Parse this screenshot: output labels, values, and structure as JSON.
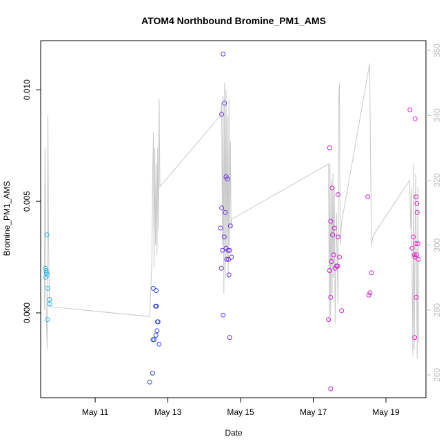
{
  "chart_data": {
    "type": "scatter",
    "title": "ATOM4 Northbound Bromine_PM1_AMS",
    "xlabel": "Date",
    "ylabel": "Bromine_PM1_AMS",
    "x_ticks": [
      "May 11",
      "May 13",
      "May 15",
      "May 17",
      "May 19"
    ],
    "x_tick_days": [
      11,
      13,
      15,
      17,
      19
    ],
    "xlim_days": [
      9.5,
      20.1
    ],
    "ylim": [
      -0.0038,
      0.0122
    ],
    "y_ticks": [
      0.0,
      0.005,
      0.01
    ],
    "y_tick_labels": [
      "0.000",
      "0.005",
      "0.010"
    ],
    "y2_ticks": [
      260,
      280,
      300,
      320,
      340,
      360
    ],
    "y2lim": [
      253,
      363
    ],
    "grid": false,
    "point_color_gradient": [
      "#29b6e8",
      "#1e4ee0",
      "#6a2ee0",
      "#c81ed4",
      "#e81ec8"
    ],
    "line_color": "#c8c8c8",
    "points": [
      [
        9.67,
        0.0035
      ],
      [
        9.63,
        0.002
      ],
      [
        9.65,
        0.0019
      ],
      [
        9.66,
        0.0018
      ],
      [
        9.64,
        0.0016
      ],
      [
        9.68,
        0.0017
      ],
      [
        9.7,
        0.0011
      ],
      [
        9.74,
        0.0006
      ],
      [
        9.75,
        0.0004
      ],
      [
        9.69,
        -0.0003
      ],
      [
        12.5,
        -0.0031
      ],
      [
        12.58,
        -0.0027
      ],
      [
        12.6,
        0.0011
      ],
      [
        12.68,
        0.001
      ],
      [
        12.66,
        0.0003
      ],
      [
        12.69,
        0.0003
      ],
      [
        12.71,
        -0.0004
      ],
      [
        12.73,
        -0.0004
      ],
      [
        12.7,
        -0.0008
      ],
      [
        12.62,
        -0.0012
      ],
      [
        12.59,
        -0.0012
      ],
      [
        12.67,
        -0.001
      ],
      [
        12.76,
        -0.0014
      ],
      [
        14.52,
        0.0116
      ],
      [
        14.56,
        0.0094
      ],
      [
        14.48,
        0.0089
      ],
      [
        14.6,
        0.0061
      ],
      [
        14.64,
        0.006
      ],
      [
        14.48,
        0.0047
      ],
      [
        14.58,
        0.0045
      ],
      [
        14.45,
        0.0038
      ],
      [
        14.72,
        0.0039
      ],
      [
        14.55,
        0.0034
      ],
      [
        14.6,
        0.0029
      ],
      [
        14.66,
        0.0028
      ],
      [
        14.5,
        0.0028
      ],
      [
        14.7,
        0.0028
      ],
      [
        14.75,
        0.0025
      ],
      [
        14.62,
        0.0024
      ],
      [
        14.67,
        0.0024
      ],
      [
        14.47,
        0.002
      ],
      [
        14.68,
        0.0017
      ],
      [
        14.52,
        -0.0001
      ],
      [
        14.7,
        -0.0011
      ],
      [
        17.45,
        0.0074
      ],
      [
        17.52,
        0.0056
      ],
      [
        17.68,
        0.0053
      ],
      [
        17.48,
        0.0041
      ],
      [
        17.58,
        0.0038
      ],
      [
        17.53,
        0.0035
      ],
      [
        17.68,
        0.0034
      ],
      [
        17.56,
        0.0026
      ],
      [
        17.72,
        0.0025
      ],
      [
        17.5,
        0.0023
      ],
      [
        17.64,
        0.0021
      ],
      [
        17.6,
        0.002
      ],
      [
        17.67,
        0.0021
      ],
      [
        17.45,
        0.0019
      ],
      [
        17.48,
        0.0007
      ],
      [
        17.78,
        0.0001
      ],
      [
        17.42,
        -0.0003
      ],
      [
        17.48,
        -0.0034
      ],
      [
        18.5,
        0.0052
      ],
      [
        18.6,
        0.0018
      ],
      [
        18.56,
        0.0009
      ],
      [
        18.53,
        0.0008
      ],
      [
        19.66,
        0.0091
      ],
      [
        19.8,
        0.0087
      ],
      [
        19.83,
        0.0052
      ],
      [
        19.85,
        0.0049
      ],
      [
        19.86,
        0.0045
      ],
      [
        19.75,
        0.0034
      ],
      [
        19.82,
        0.0031
      ],
      [
        19.88,
        0.0031
      ],
      [
        19.72,
        0.0029
      ],
      [
        19.78,
        0.0026
      ],
      [
        19.84,
        0.0026
      ],
      [
        19.8,
        0.0025
      ],
      [
        19.89,
        0.0024
      ],
      [
        19.83,
        0.0007
      ],
      [
        19.79,
        -0.0011
      ]
    ],
    "line_series_y2": [
      [
        9.6,
        280
      ],
      [
        9.62,
        330
      ],
      [
        9.64,
        290
      ],
      [
        9.66,
        276
      ],
      [
        9.68,
        268
      ],
      [
        9.7,
        340
      ],
      [
        9.72,
        300
      ],
      [
        9.74,
        282
      ],
      [
        9.76,
        281
      ],
      [
        12.5,
        278
      ],
      [
        12.56,
        295
      ],
      [
        12.58,
        320
      ],
      [
        12.6,
        335
      ],
      [
        12.62,
        293
      ],
      [
        12.64,
        330
      ],
      [
        12.66,
        300
      ],
      [
        12.68,
        325
      ],
      [
        12.7,
        297
      ],
      [
        12.72,
        330
      ],
      [
        12.74,
        305
      ],
      [
        12.76,
        345
      ],
      [
        12.78,
        318
      ],
      [
        14.45,
        340
      ],
      [
        14.48,
        344
      ],
      [
        14.5,
        300
      ],
      [
        14.52,
        346
      ],
      [
        14.54,
        285
      ],
      [
        14.56,
        350
      ],
      [
        14.58,
        290
      ],
      [
        14.6,
        348
      ],
      [
        14.62,
        295
      ],
      [
        14.64,
        340
      ],
      [
        14.66,
        290
      ],
      [
        14.68,
        345
      ],
      [
        14.7,
        300
      ],
      [
        14.72,
        332
      ],
      [
        14.74,
        305
      ],
      [
        14.76,
        308
      ],
      [
        17.42,
        325
      ],
      [
        17.44,
        275
      ],
      [
        17.46,
        325
      ],
      [
        17.48,
        278
      ],
      [
        17.5,
        320
      ],
      [
        17.52,
        285
      ],
      [
        17.54,
        322
      ],
      [
        17.56,
        290
      ],
      [
        17.58,
        318
      ],
      [
        17.6,
        276
      ],
      [
        17.64,
        310
      ],
      [
        17.68,
        282
      ],
      [
        17.7,
        345
      ],
      [
        17.72,
        350
      ],
      [
        17.74,
        300
      ],
      [
        17.78,
        307
      ],
      [
        18.55,
        356
      ],
      [
        18.6,
        300
      ],
      [
        18.65,
        303
      ],
      [
        19.65,
        320
      ],
      [
        19.68,
        305
      ],
      [
        19.7,
        318
      ],
      [
        19.72,
        290
      ],
      [
        19.74,
        266
      ],
      [
        19.76,
        325
      ],
      [
        19.78,
        268
      ],
      [
        19.8,
        300
      ],
      [
        19.82,
        322
      ],
      [
        19.84,
        290
      ],
      [
        19.86,
        265
      ],
      [
        19.88,
        318
      ],
      [
        19.9,
        270
      ]
    ]
  }
}
